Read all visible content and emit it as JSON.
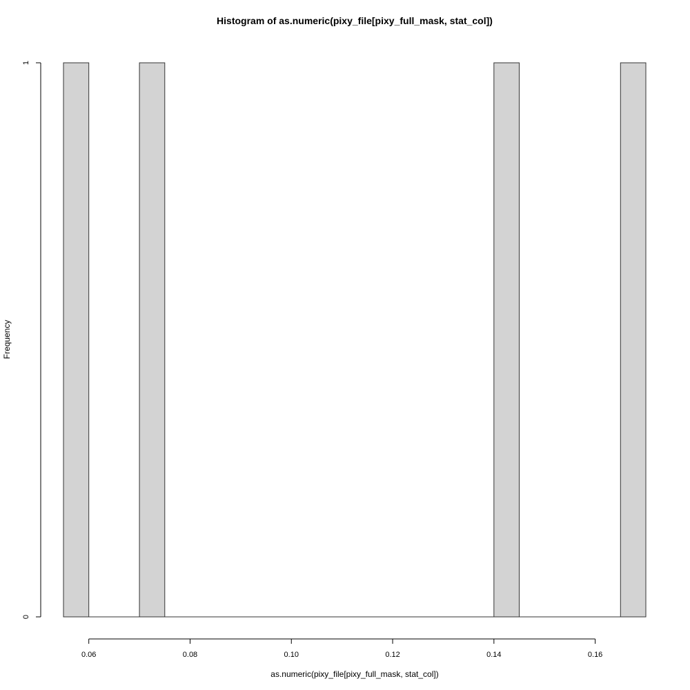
{
  "chart_data": {
    "type": "bar",
    "subtype": "histogram",
    "title": "Histogram of as.numeric(pixy_file[pixy_full_mask, stat_col])",
    "xlabel": "as.numeric(pixy_file[pixy_full_mask, stat_col])",
    "ylabel": "Frequency",
    "bins": [
      {
        "start": 0.055,
        "end": 0.06,
        "count": 1
      },
      {
        "start": 0.07,
        "end": 0.075,
        "count": 1
      },
      {
        "start": 0.14,
        "end": 0.145,
        "count": 1
      },
      {
        "start": 0.165,
        "end": 0.17,
        "count": 1
      }
    ],
    "xlim": [
      0.055,
      0.17
    ],
    "ylim": [
      0,
      1
    ],
    "x_ticks": [
      0.06,
      0.08,
      0.1,
      0.12,
      0.14,
      0.16
    ],
    "x_tick_labels": [
      "0.06",
      "0.08",
      "0.10",
      "0.12",
      "0.14",
      "0.16"
    ],
    "y_ticks": [
      0,
      1
    ],
    "y_tick_labels": [
      "0",
      "1"
    ],
    "grid": false,
    "legend": "none",
    "colors": {
      "bar_fill": "#d3d3d3",
      "bar_stroke": "#333333",
      "axis": "#000000",
      "background": "#ffffff"
    }
  }
}
